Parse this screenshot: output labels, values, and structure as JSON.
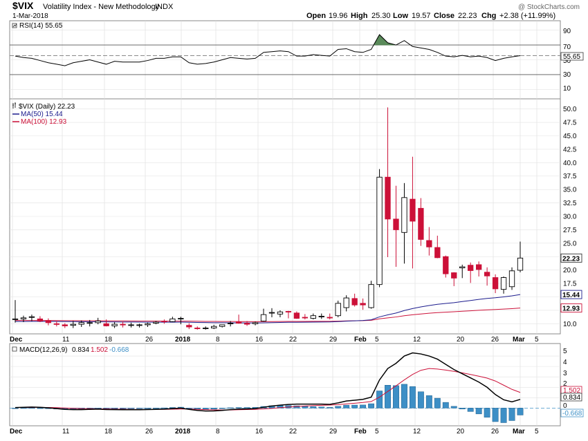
{
  "header": {
    "symbol": "$VIX",
    "name": "Volatility Index - New Methodology",
    "exchange": "INDX",
    "date": "1-Mar-2018",
    "copyright": "@ StockCharts.com",
    "open_label": "Open",
    "open": "19.96",
    "high_label": "High",
    "high": "25.30",
    "low_label": "Low",
    "low": "19.57",
    "close_label": "Close",
    "close": "22.23",
    "chg_label": "Chg",
    "chg": "+2.38 (+11.99%)"
  },
  "colors": {
    "up": "#ffffff",
    "down": "#cc1038",
    "ma50": "#1a1a8c",
    "ma100": "#cc1038",
    "macd_line": "#000000",
    "signal_line": "#cc1038",
    "hist": "#3d8fc6",
    "rsi_fill": "#5a8a5a"
  },
  "rsi_panel": {
    "legend": "RSI(14) 55.65",
    "last_label": "55.65",
    "axis_labels": [
      "90",
      "70",
      "50",
      "30",
      "10"
    ]
  },
  "price_panel": {
    "legend_main": "$VIX (Daily) 22.23",
    "legend_ma50": "MA(50) 15.44",
    "legend_ma100": "MA(100) 12.93",
    "last_price": "22.23",
    "last_ma50": "15.44",
    "last_ma100": "12.93",
    "axis_labels": [
      "50.0",
      "47.5",
      "45.0",
      "42.5",
      "40.0",
      "37.5",
      "35.0",
      "32.5",
      "30.0",
      "27.5",
      "25.0",
      "20.0",
      "17.5",
      "10.0"
    ]
  },
  "macd_panel": {
    "legend_label": "MACD(12,26,9)",
    "legend_macd": "0.834",
    "legend_signal": "1.502",
    "legend_hist": "-0.668",
    "last_signal": "1.502",
    "last_macd": "0.834",
    "last_hist": "-0.668",
    "axis_labels": [
      "5",
      "4",
      "3",
      "2",
      "0"
    ]
  },
  "x_axis_labels": [
    "Dec",
    "11",
    "18",
    "26",
    "2018",
    "8",
    "16",
    "22",
    "29",
    "Feb",
    "5",
    "12",
    "20",
    "26",
    "Mar",
    "5"
  ],
  "chart_data": {
    "type": "candlestick",
    "x": [
      "2017-11-30",
      "2017-12-01",
      "2017-12-04",
      "2017-12-05",
      "2017-12-06",
      "2017-12-07",
      "2017-12-08",
      "2017-12-11",
      "2017-12-12",
      "2017-12-13",
      "2017-12-14",
      "2017-12-15",
      "2017-12-18",
      "2017-12-19",
      "2017-12-20",
      "2017-12-21",
      "2017-12-22",
      "2017-12-26",
      "2017-12-27",
      "2017-12-28",
      "2017-12-29",
      "2018-01-02",
      "2018-01-03",
      "2018-01-04",
      "2018-01-05",
      "2018-01-08",
      "2018-01-09",
      "2018-01-10",
      "2018-01-11",
      "2018-01-12",
      "2018-01-16",
      "2018-01-17",
      "2018-01-18",
      "2018-01-19",
      "2018-01-22",
      "2018-01-23",
      "2018-01-24",
      "2018-01-25",
      "2018-01-26",
      "2018-01-29",
      "2018-01-30",
      "2018-01-31",
      "2018-02-01",
      "2018-02-02",
      "2018-02-05",
      "2018-02-06",
      "2018-02-07",
      "2018-02-08",
      "2018-02-09",
      "2018-02-12",
      "2018-02-13",
      "2018-02-14",
      "2018-02-15",
      "2018-02-16",
      "2018-02-20",
      "2018-02-21",
      "2018-02-22",
      "2018-02-23",
      "2018-02-26",
      "2018-02-27",
      "2018-02-28",
      "2018-03-01"
    ],
    "open": [
      10.8,
      10.9,
      11.2,
      10.9,
      10.6,
      10.0,
      9.8,
      9.7,
      9.9,
      10.1,
      10.2,
      10.0,
      9.6,
      9.9,
      9.8,
      9.7,
      9.8,
      10.1,
      10.5,
      10.4,
      11.0,
      9.7,
      9.2,
      9.1,
      9.2,
      9.5,
      10.0,
      10.3,
      10.1,
      10.0,
      10.5,
      12.0,
      11.8,
      12.3,
      12.0,
      11.2,
      11.0,
      11.3,
      11.2,
      11.5,
      13.0,
      14.7,
      13.8,
      13.0,
      17.3,
      37.3,
      29.5,
      27.0,
      33.2,
      31.5,
      25.5,
      24.2,
      22.5,
      19.5,
      20.4,
      20.9,
      21.0,
      19.6,
      18.6,
      16.4,
      16.9,
      19.96
    ],
    "high": [
      14.4,
      11.5,
      11.7,
      11.4,
      11.0,
      10.5,
      10.1,
      10.5,
      10.6,
      10.7,
      11.1,
      10.8,
      10.3,
      10.4,
      10.2,
      10.0,
      10.2,
      10.5,
      10.8,
      11.3,
      11.3,
      10.1,
      9.5,
      9.5,
      9.8,
      9.8,
      10.5,
      11.7,
      10.5,
      10.4,
      12.8,
      12.9,
      12.5,
      12.4,
      12.3,
      11.8,
      11.9,
      11.9,
      11.9,
      14.3,
      15.3,
      15.6,
      14.7,
      18.0,
      38.8,
      50.3,
      35.7,
      36.2,
      41.1,
      33.4,
      28.0,
      26.4,
      22.7,
      19.6,
      21.0,
      21.4,
      21.6,
      20.5,
      19.2,
      18.8,
      20.5,
      25.3
    ],
    "low": [
      10.2,
      10.3,
      10.5,
      10.3,
      9.7,
      9.5,
      9.2,
      9.2,
      9.4,
      9.5,
      9.9,
      9.5,
      9.2,
      9.3,
      9.3,
      9.3,
      9.4,
      9.9,
      10.0,
      10.3,
      9.9,
      9.0,
      8.9,
      8.9,
      9.0,
      9.3,
      9.5,
      10.0,
      9.6,
      9.7,
      10.4,
      11.2,
      11.2,
      11.0,
      10.9,
      10.8,
      10.8,
      10.9,
      10.8,
      11.2,
      12.3,
      13.2,
      12.6,
      12.8,
      16.8,
      22.4,
      20.6,
      21.2,
      20.3,
      24.5,
      22.7,
      22.2,
      18.6,
      17.0,
      18.5,
      17.6,
      18.8,
      17.1,
      15.7,
      15.6,
      16.3,
      19.57
    ],
    "close": [
      10.9,
      11.1,
      11.3,
      10.5,
      10.2,
      9.9,
      9.6,
      9.9,
      10.2,
      10.2,
      10.5,
      9.6,
      9.9,
      9.8,
      9.8,
      9.8,
      10.0,
      10.3,
      10.4,
      10.9,
      11.0,
      9.4,
      9.1,
      9.2,
      9.5,
      9.8,
      10.1,
      10.1,
      9.9,
      10.2,
      11.7,
      12.1,
      12.2,
      12.2,
      11.0,
      11.1,
      11.5,
      11.4,
      11.1,
      13.8,
      14.8,
      13.5,
      13.5,
      17.3,
      37.3,
      29.5,
      27.5,
      33.5,
      29.1,
      25.7,
      24.3,
      22.3,
      19.3,
      18.5,
      20.6,
      19.9,
      20.1,
      18.9,
      16.5,
      18.6,
      19.85,
      22.23
    ],
    "series": [
      {
        "name": "MA(50)",
        "last": 15.44
      },
      {
        "name": "MA(100)",
        "last": 12.93
      },
      {
        "name": "RSI(14)",
        "last": 55.65
      },
      {
        "name": "MACD(12,26,9)",
        "macd": 0.834,
        "signal": 1.502,
        "histogram": -0.668
      }
    ],
    "rsi_values": [
      55,
      53,
      52,
      49,
      46,
      44,
      42,
      46,
      48,
      50,
      47,
      44,
      48,
      47,
      47,
      47,
      49,
      52,
      52,
      54,
      54,
      46,
      44,
      45,
      47,
      50,
      53,
      52,
      51,
      52,
      60,
      61,
      62,
      61,
      55,
      55,
      57,
      56,
      55,
      64,
      65,
      61,
      60,
      64,
      84,
      73,
      70,
      76,
      68,
      66,
      64,
      60,
      55,
      54,
      56,
      54,
      55,
      53,
      49,
      52,
      54,
      55.65
    ],
    "macd_values": [
      0.05,
      0.08,
      0.1,
      0.08,
      0.03,
      -0.05,
      -0.12,
      -0.15,
      -0.15,
      -0.12,
      -0.1,
      -0.14,
      -0.15,
      -0.16,
      -0.16,
      -0.16,
      -0.14,
      -0.12,
      -0.1,
      -0.05,
      0.0,
      -0.12,
      -0.22,
      -0.28,
      -0.27,
      -0.22,
      -0.15,
      -0.1,
      -0.08,
      -0.05,
      0.08,
      0.2,
      0.28,
      0.35,
      0.38,
      0.38,
      0.38,
      0.38,
      0.36,
      0.5,
      0.68,
      0.76,
      0.84,
      1.05,
      2.7,
      3.8,
      4.3,
      5.0,
      5.3,
      5.2,
      5.0,
      4.7,
      4.2,
      3.7,
      3.3,
      2.9,
      2.5,
      2.0,
      1.3,
      0.8,
      0.6,
      0.834
    ],
    "signal_values": [
      0.05,
      0.06,
      0.07,
      0.07,
      0.06,
      0.04,
      0.01,
      -0.02,
      -0.05,
      -0.06,
      -0.07,
      -0.08,
      -0.1,
      -0.11,
      -0.12,
      -0.13,
      -0.13,
      -0.13,
      -0.12,
      -0.11,
      -0.09,
      -0.09,
      -0.12,
      -0.15,
      -0.17,
      -0.18,
      -0.18,
      -0.16,
      -0.14,
      -0.12,
      -0.08,
      -0.03,
      0.04,
      0.1,
      0.16,
      0.2,
      0.24,
      0.27,
      0.29,
      0.33,
      0.4,
      0.47,
      0.54,
      0.63,
      1.05,
      1.6,
      2.14,
      2.71,
      3.23,
      3.63,
      3.8,
      3.75,
      3.65,
      3.53,
      3.39,
      3.23,
      3.06,
      2.88,
      2.6,
      2.2,
      1.8,
      1.502
    ],
    "ylim": [
      8.5,
      51.5
    ],
    "rsi_ylim": [
      0,
      100
    ],
    "macd_ylim": [
      -1.5,
      6
    ]
  }
}
